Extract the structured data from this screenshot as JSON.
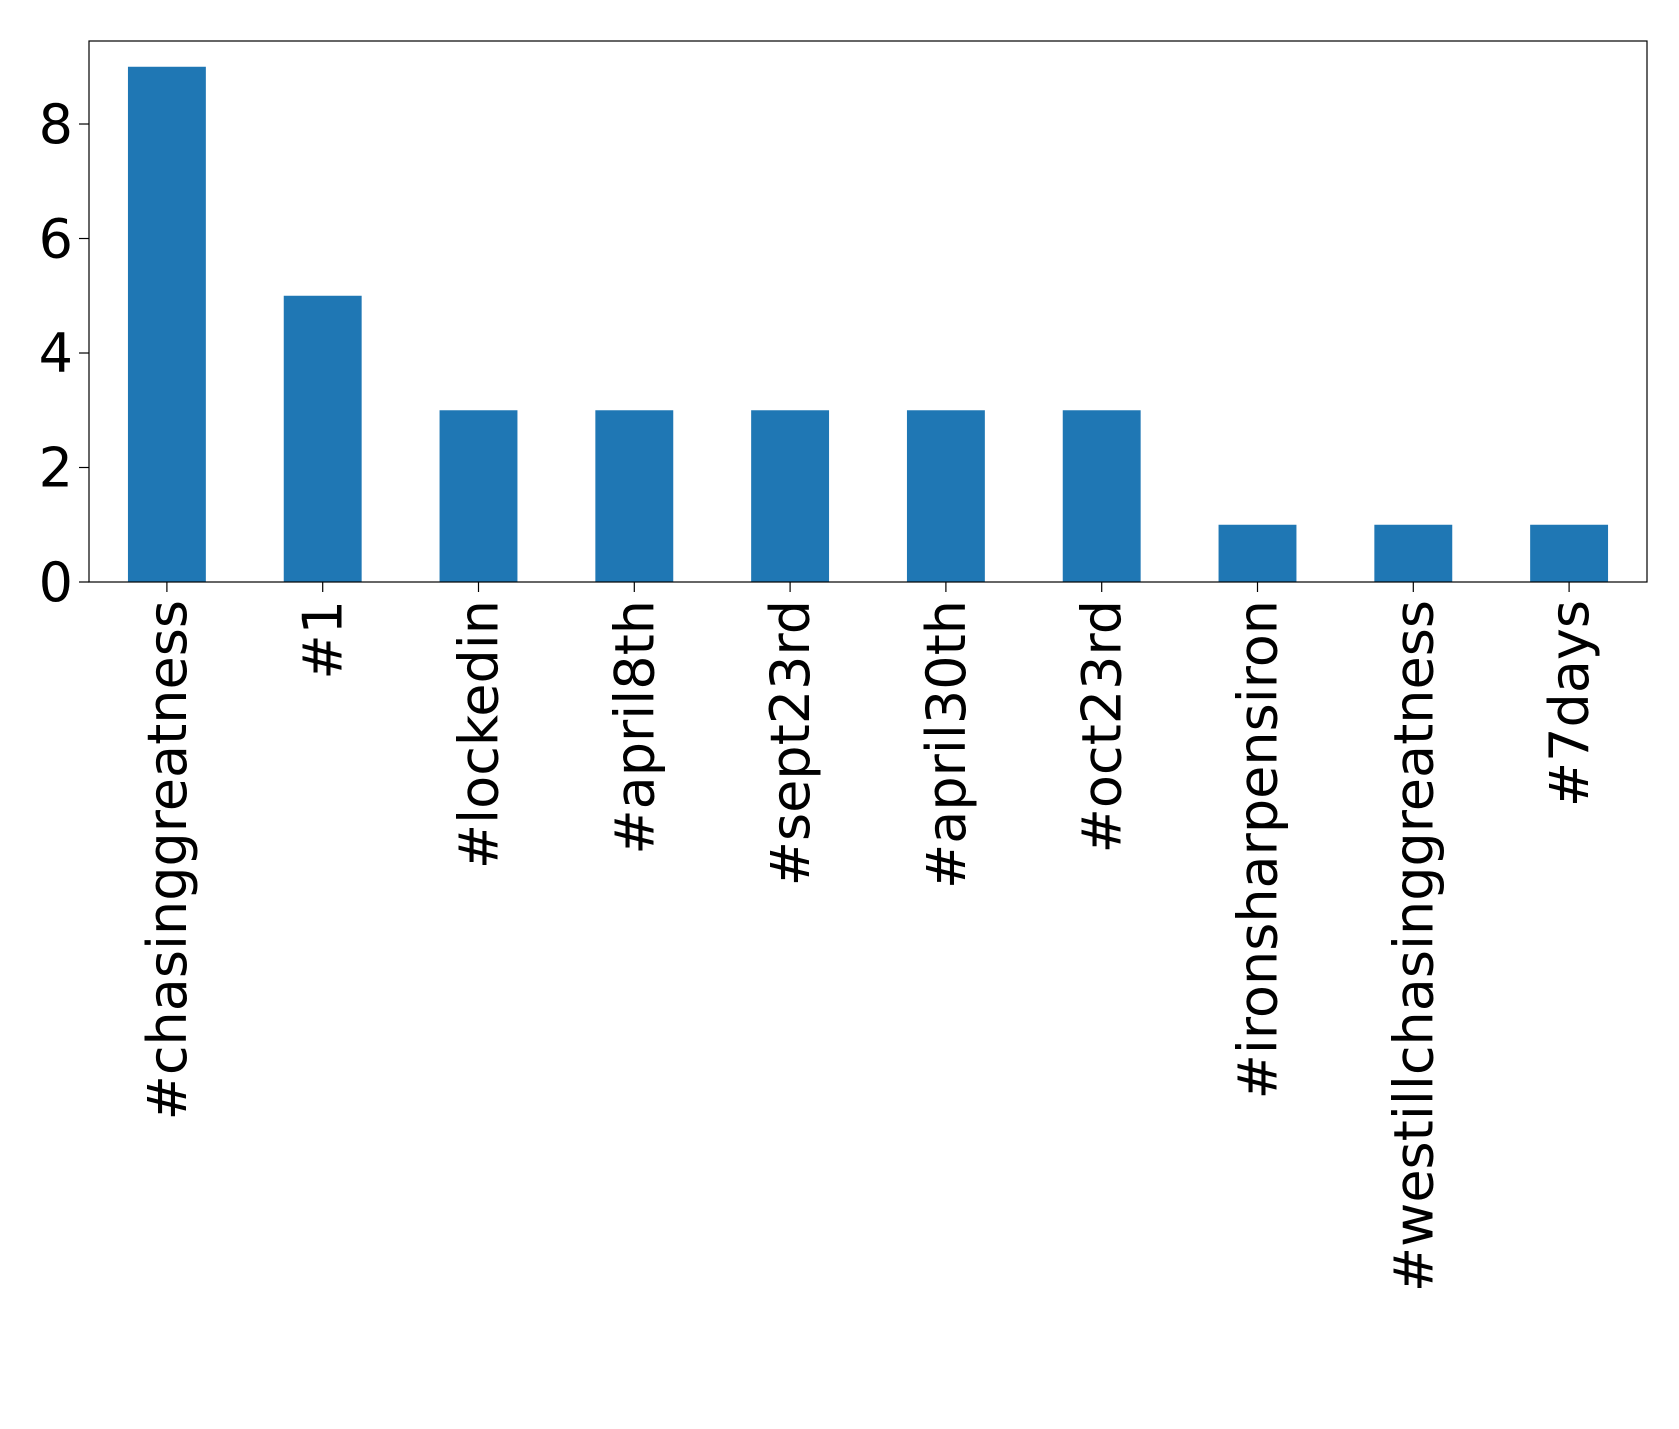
{
  "chart_data": {
    "type": "bar",
    "categories": [
      "#chasinggreatness",
      "#1",
      "#lockedin",
      "#april8th",
      "#sept23rd",
      "#april30th",
      "#oct23rd",
      "#ironsharpensiron",
      "#westillchasinggreatness",
      "#7days"
    ],
    "values": [
      9,
      5,
      3,
      3,
      3,
      3,
      3,
      1,
      1,
      1
    ],
    "color": "#1f77b4",
    "ylim": [
      0,
      9.45
    ],
    "yticks": [
      0,
      2,
      4,
      6,
      8
    ],
    "grid": false
  }
}
